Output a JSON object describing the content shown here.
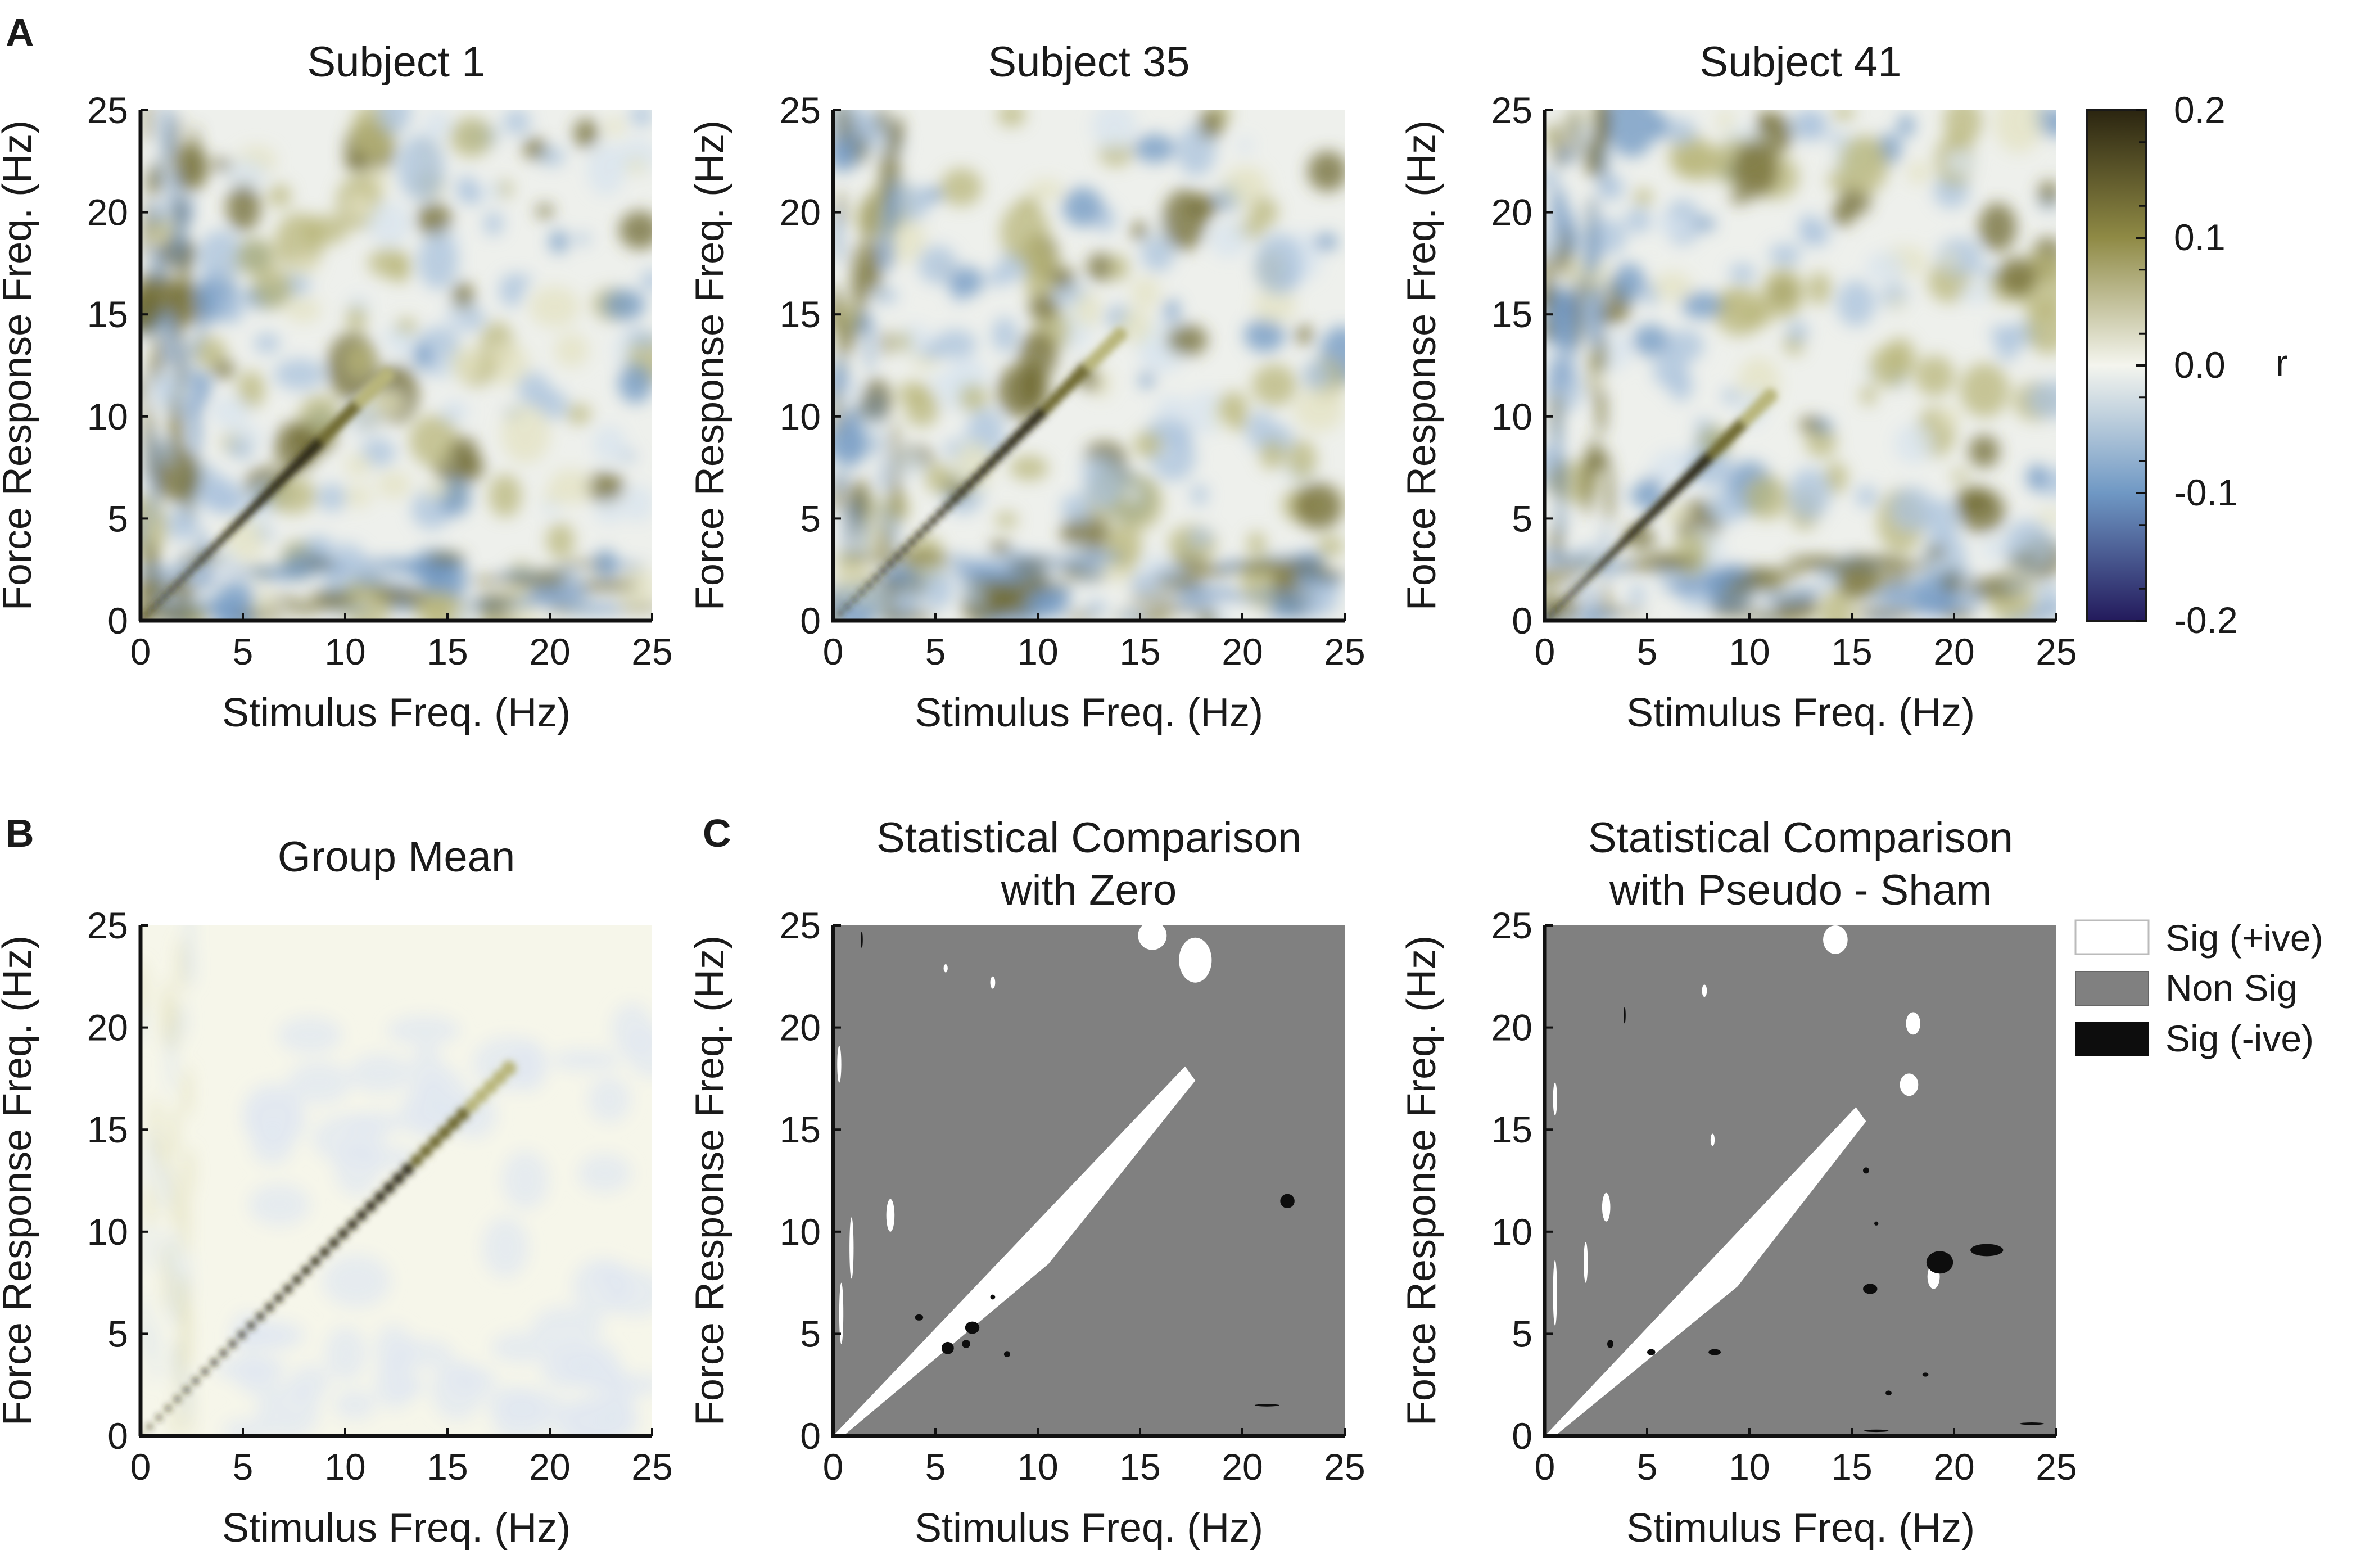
{
  "figure": {
    "panel_letters": [
      "A",
      "B",
      "C"
    ]
  },
  "colorbar": {
    "ticks": [
      "0.2",
      "0.1",
      "0.0",
      "-0.1",
      "-0.2"
    ],
    "tick_values": [
      0.2,
      0.1,
      0.0,
      -0.1,
      -0.2
    ],
    "label": "r",
    "colors": {
      "top": "#2b2510",
      "upper": "#8f8a45",
      "mid": "#f4f5ee",
      "lower": "#6f98c4",
      "bottom": "#231a5c"
    }
  },
  "legend": {
    "items": [
      {
        "label": "Sig (+ive)",
        "color": "#ffffff"
      },
      {
        "label": "Non Sig",
        "color": "#808080"
      },
      {
        "label": "Sig (-ive)",
        "color": "#0d0d0d"
      }
    ]
  },
  "chart_data": [
    {
      "type": "heatmap",
      "title": "Subject 1",
      "xlabel": "Stimulus Freq. (Hz)",
      "ylabel": "Force Response Freq. (Hz)",
      "xlim": [
        0,
        25
      ],
      "ylim": [
        0,
        25
      ],
      "xticks": [
        0,
        5,
        10,
        15,
        20,
        25
      ],
      "yticks": [
        0,
        5,
        10,
        15,
        20,
        25
      ],
      "colorscale": "r",
      "diagonal_peak_until_hz": 12,
      "noise_seed": 1
    },
    {
      "type": "heatmap",
      "title": "Subject 35",
      "xlabel": "Stimulus Freq. (Hz)",
      "ylabel": "Force Response Freq. (Hz)",
      "xlim": [
        0,
        25
      ],
      "ylim": [
        0,
        25
      ],
      "xticks": [
        0,
        5,
        10,
        15,
        20,
        25
      ],
      "yticks": [
        0,
        5,
        10,
        15,
        20,
        25
      ],
      "colorscale": "r",
      "diagonal_peak_until_hz": 14,
      "noise_seed": 35
    },
    {
      "type": "heatmap",
      "title": "Subject 41",
      "xlabel": "Stimulus Freq. (Hz)",
      "ylabel": "Force Response Freq. (Hz)",
      "xlim": [
        0,
        25
      ],
      "ylim": [
        0,
        25
      ],
      "xticks": [
        0,
        5,
        10,
        15,
        20,
        25
      ],
      "yticks": [
        0,
        5,
        10,
        15,
        20,
        25
      ],
      "colorscale": "r",
      "diagonal_peak_until_hz": 11,
      "noise_seed": 41
    },
    {
      "type": "heatmap",
      "title": "Group Mean",
      "xlabel": "Stimulus Freq. (Hz)",
      "ylabel": "Force Response Freq. (Hz)",
      "xlim": [
        0,
        25
      ],
      "ylim": [
        0,
        25
      ],
      "xticks": [
        0,
        5,
        10,
        15,
        20,
        25
      ],
      "yticks": [
        0,
        5,
        10,
        15,
        20,
        25
      ],
      "colorscale": "r",
      "diagonal_peak_until_hz": 18
    },
    {
      "type": "heatmap",
      "title": [
        "Statistical Comparison",
        "with Zero"
      ],
      "xlabel": "Stimulus Freq. (Hz)",
      "ylabel": "Force Response Freq. (Hz)",
      "xlim": [
        0,
        25
      ],
      "ylim": [
        0,
        25
      ],
      "xticks": [
        0,
        5,
        10,
        15,
        20,
        25
      ],
      "yticks": [
        0,
        5,
        10,
        15,
        20,
        25
      ],
      "colorscale": "significance",
      "diagonal_sig_until_hz": 17.5,
      "positive_blobs": [
        {
          "x": 15.6,
          "y": 24.5,
          "rx": 0.7,
          "ry": 0.7
        },
        {
          "x": 17.7,
          "y": 23.3,
          "rx": 0.8,
          "ry": 1.1
        },
        {
          "x": 2.8,
          "y": 10.8,
          "rx": 0.2,
          "ry": 0.8
        },
        {
          "x": 0.9,
          "y": 9.2,
          "rx": 0.1,
          "ry": 1.5
        },
        {
          "x": 0.4,
          "y": 6.0,
          "rx": 0.1,
          "ry": 1.5
        },
        {
          "x": 0.3,
          "y": 18.2,
          "rx": 0.1,
          "ry": 0.9
        },
        {
          "x": 7.8,
          "y": 22.2,
          "rx": 0.12,
          "ry": 0.3
        },
        {
          "x": 5.5,
          "y": 22.9,
          "rx": 0.1,
          "ry": 0.2
        }
      ],
      "negative_blobs": [
        {
          "x": 22.2,
          "y": 11.5,
          "rx": 0.35,
          "ry": 0.35
        },
        {
          "x": 6.8,
          "y": 5.3,
          "rx": 0.35,
          "ry": 0.3
        },
        {
          "x": 5.6,
          "y": 4.3,
          "rx": 0.3,
          "ry": 0.3
        },
        {
          "x": 6.5,
          "y": 4.5,
          "rx": 0.2,
          "ry": 0.2
        },
        {
          "x": 4.2,
          "y": 5.8,
          "rx": 0.2,
          "ry": 0.15
        },
        {
          "x": 8.5,
          "y": 4.0,
          "rx": 0.15,
          "ry": 0.15
        },
        {
          "x": 7.8,
          "y": 6.8,
          "rx": 0.12,
          "ry": 0.12
        },
        {
          "x": 21.2,
          "y": 1.5,
          "rx": 0.6,
          "ry": 0.06
        },
        {
          "x": 1.4,
          "y": 24.3,
          "rx": 0.05,
          "ry": 0.4
        }
      ]
    },
    {
      "type": "heatmap",
      "title": [
        "Statistical Comparison",
        "with Pseudo - Sham"
      ],
      "xlabel": "Stimulus Freq. (Hz)",
      "ylabel": "Force Response Freq. (Hz)",
      "xlim": [
        0,
        25
      ],
      "ylim": [
        0,
        25
      ],
      "xticks": [
        0,
        5,
        10,
        15,
        20,
        25
      ],
      "yticks": [
        0,
        5,
        10,
        15,
        20,
        25
      ],
      "colorscale": "significance",
      "diagonal_sig_until_hz": 15.5,
      "positive_blobs": [
        {
          "x": 14.2,
          "y": 24.3,
          "rx": 0.6,
          "ry": 0.7
        },
        {
          "x": 18.0,
          "y": 20.2,
          "rx": 0.35,
          "ry": 0.55
        },
        {
          "x": 17.8,
          "y": 17.2,
          "rx": 0.45,
          "ry": 0.55
        },
        {
          "x": 3.0,
          "y": 11.2,
          "rx": 0.2,
          "ry": 0.7
        },
        {
          "x": 2.0,
          "y": 8.5,
          "rx": 0.1,
          "ry": 1.0
        },
        {
          "x": 0.5,
          "y": 7.0,
          "rx": 0.1,
          "ry": 1.6
        },
        {
          "x": 0.5,
          "y": 16.5,
          "rx": 0.1,
          "ry": 0.8
        },
        {
          "x": 7.8,
          "y": 21.8,
          "rx": 0.12,
          "ry": 0.3
        },
        {
          "x": 8.2,
          "y": 14.5,
          "rx": 0.1,
          "ry": 0.3
        },
        {
          "x": 19.0,
          "y": 7.8,
          "rx": 0.3,
          "ry": 0.6
        }
      ],
      "negative_blobs": [
        {
          "x": 19.3,
          "y": 8.5,
          "rx": 0.65,
          "ry": 0.55
        },
        {
          "x": 21.6,
          "y": 9.1,
          "rx": 0.8,
          "ry": 0.3
        },
        {
          "x": 15.9,
          "y": 7.2,
          "rx": 0.35,
          "ry": 0.25
        },
        {
          "x": 15.7,
          "y": 13.0,
          "rx": 0.15,
          "ry": 0.15
        },
        {
          "x": 16.2,
          "y": 10.4,
          "rx": 0.1,
          "ry": 0.1
        },
        {
          "x": 8.3,
          "y": 4.1,
          "rx": 0.3,
          "ry": 0.15
        },
        {
          "x": 5.2,
          "y": 4.1,
          "rx": 0.2,
          "ry": 0.15
        },
        {
          "x": 3.2,
          "y": 4.5,
          "rx": 0.15,
          "ry": 0.2
        },
        {
          "x": 16.8,
          "y": 2.1,
          "rx": 0.15,
          "ry": 0.12
        },
        {
          "x": 18.6,
          "y": 3.0,
          "rx": 0.15,
          "ry": 0.1
        },
        {
          "x": 16.2,
          "y": 0.25,
          "rx": 0.6,
          "ry": 0.06
        },
        {
          "x": 23.8,
          "y": 0.6,
          "rx": 0.6,
          "ry": 0.06
        },
        {
          "x": 3.9,
          "y": 20.6,
          "rx": 0.05,
          "ry": 0.4
        }
      ]
    }
  ]
}
